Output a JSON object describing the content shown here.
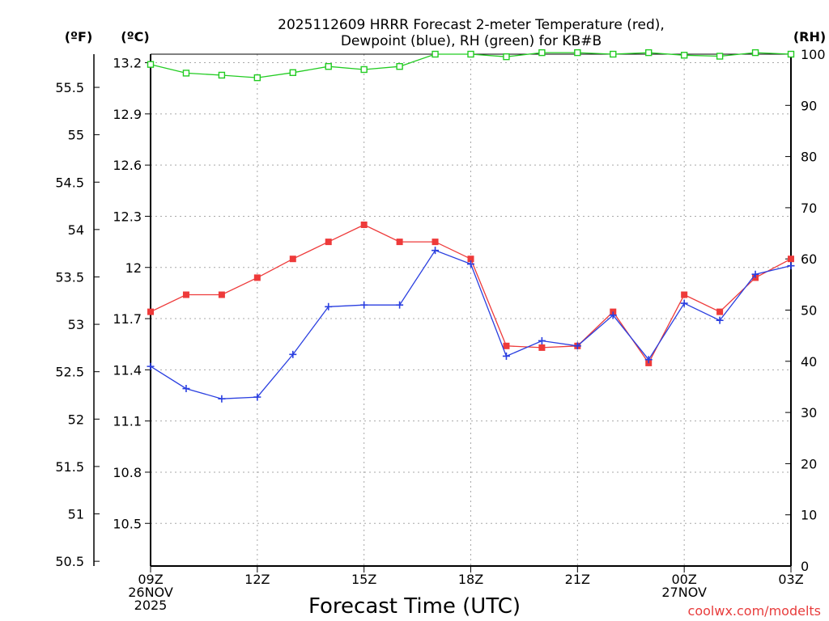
{
  "chart_data": {
    "type": "line",
    "title_line1": "2025112609 HRRR Forecast 2-meter Temperature (red),",
    "title_line2": "Dewpoint (blue), RH (green) for KB#B",
    "xlabel": "Forecast Time (UTC)",
    "credit": "coolwx.com/modelts",
    "units": {
      "left_f": "(ºF)",
      "left_c": "(ºC)",
      "right_rh": "(RH)"
    },
    "x_ticks": [
      {
        "h": 0,
        "lines": [
          "09Z",
          "26NOV",
          "2025"
        ]
      },
      {
        "h": 3,
        "lines": [
          "12Z"
        ]
      },
      {
        "h": 6,
        "lines": [
          "15Z"
        ]
      },
      {
        "h": 9,
        "lines": [
          "18Z"
        ]
      },
      {
        "h": 12,
        "lines": [
          "21Z"
        ]
      },
      {
        "h": 15,
        "lines": [
          "00Z",
          "27NOV"
        ]
      },
      {
        "h": 18,
        "lines": [
          "03Z"
        ]
      }
    ],
    "xlim": [
      0,
      18
    ],
    "celsius_axis": {
      "ylim": [
        10.25,
        13.25
      ],
      "ticks": [
        10.5,
        10.8,
        11.1,
        11.4,
        11.7,
        12,
        12.3,
        12.6,
        12.9,
        13.2
      ],
      "labels": [
        "10.5",
        "10.8",
        "11.1",
        "11.4",
        "11.7",
        "12",
        "12.3",
        "12.6",
        "12.9",
        "13.2"
      ]
    },
    "fahrenheit_axis": {
      "ticks": [
        50.5,
        51,
        51.5,
        52,
        52.5,
        53,
        53.5,
        54,
        54.5,
        55,
        55.5
      ],
      "labels": [
        "50.5",
        "51",
        "51.5",
        "52",
        "52.5",
        "53",
        "53.5",
        "54",
        "54.5",
        "55",
        "55.5"
      ]
    },
    "rh_axis": {
      "ylim": [
        0,
        100
      ],
      "ticks": [
        0,
        10,
        20,
        30,
        40,
        50,
        60,
        70,
        80,
        90,
        100
      ],
      "labels": [
        "0",
        "10",
        "20",
        "30",
        "40",
        "50",
        "60",
        "70",
        "80",
        "90",
        "100"
      ]
    },
    "series": [
      {
        "name": "Temperature",
        "unit": "C",
        "color": "#ee3a3a",
        "marker": "square-filled",
        "values": [
          11.74,
          11.84,
          11.84,
          11.94,
          12.05,
          12.15,
          12.25,
          12.15,
          12.15,
          12.05,
          11.54,
          11.53,
          11.54,
          11.74,
          11.44,
          11.84,
          11.74,
          11.94,
          12.05
        ]
      },
      {
        "name": "Dewpoint",
        "unit": "C",
        "color": "#2a3fe0",
        "marker": "plus",
        "values": [
          11.42,
          11.29,
          11.23,
          11.24,
          11.49,
          11.77,
          11.78,
          11.78,
          12.1,
          12.02,
          11.48,
          11.57,
          11.54,
          11.72,
          11.46,
          11.79,
          11.69,
          11.96,
          12.01
        ]
      },
      {
        "name": "RH",
        "unit": "%",
        "color": "#22cc22",
        "marker": "square-open",
        "values": [
          98.0,
          96.3,
          95.9,
          95.4,
          96.4,
          97.6,
          97.0,
          97.6,
          100.0,
          100.0,
          99.5,
          100.3,
          100.3,
          100.0,
          100.3,
          99.8,
          99.6,
          100.3,
          100.0
        ]
      }
    ]
  }
}
